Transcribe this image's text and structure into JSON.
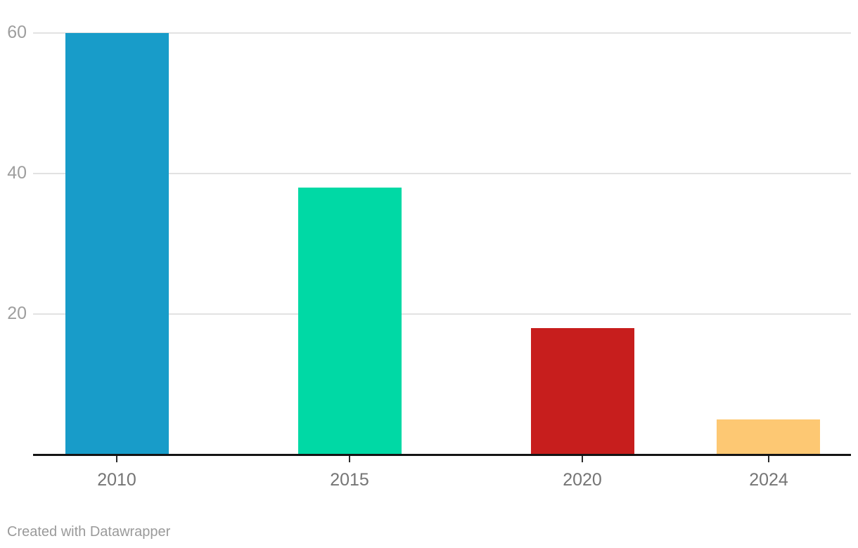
{
  "chart_data": {
    "type": "bar",
    "categories": [
      "2010",
      "2015",
      "2020",
      "2024"
    ],
    "values": [
      60,
      38,
      18,
      5
    ],
    "bar_colors": [
      "#189cc9",
      "#00d9a5",
      "#c71e1d",
      "#fdc873"
    ],
    "title": "",
    "xlabel": "",
    "ylabel": "",
    "ylim": [
      0,
      60
    ],
    "yticks": [
      20,
      40,
      60
    ],
    "ytick_labels": [
      "20",
      "40",
      "60"
    ],
    "grid": true,
    "legend": false,
    "x_scale": "linear-years",
    "axis_line_color": "#141414",
    "gridline_color": "#e2e2e2",
    "y_label_color": "#9e9e9e",
    "x_label_color": "#757575"
  },
  "footer": {
    "credit": "Created with Datawrapper"
  }
}
